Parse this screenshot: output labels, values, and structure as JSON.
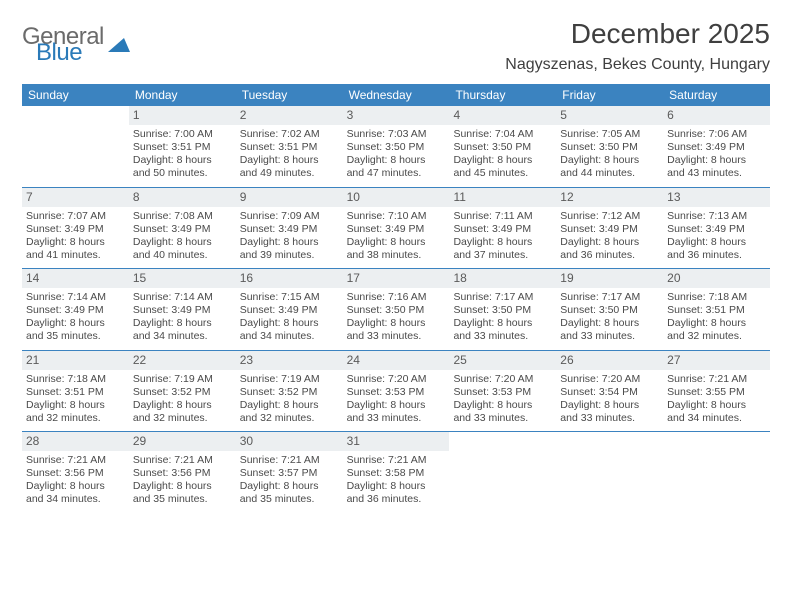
{
  "brand": {
    "part1": "General",
    "part2": "Blue"
  },
  "title": "December 2025",
  "location": "Nagyszenas, Bekes County, Hungary",
  "colors": {
    "header_bg": "#3b83c0",
    "header_text": "#ffffff",
    "daynum_bg": "#eceff1",
    "text": "#4a4a4a",
    "rule": "#3b83c0",
    "brand_blue": "#2a7ab8",
    "brand_gray": "#6b6b6b"
  },
  "typography": {
    "title_fontsize": 28,
    "location_fontsize": 16,
    "dow_fontsize": 12,
    "cell_fontsize": 10.5,
    "daynum_fontsize": 12
  },
  "days_of_week": [
    "Sunday",
    "Monday",
    "Tuesday",
    "Wednesday",
    "Thursday",
    "Friday",
    "Saturday"
  ],
  "weeks": [
    [
      {
        "n": "",
        "lines": []
      },
      {
        "n": "1",
        "lines": [
          "Sunrise: 7:00 AM",
          "Sunset: 3:51 PM",
          "Daylight: 8 hours and 50 minutes."
        ]
      },
      {
        "n": "2",
        "lines": [
          "Sunrise: 7:02 AM",
          "Sunset: 3:51 PM",
          "Daylight: 8 hours and 49 minutes."
        ]
      },
      {
        "n": "3",
        "lines": [
          "Sunrise: 7:03 AM",
          "Sunset: 3:50 PM",
          "Daylight: 8 hours and 47 minutes."
        ]
      },
      {
        "n": "4",
        "lines": [
          "Sunrise: 7:04 AM",
          "Sunset: 3:50 PM",
          "Daylight: 8 hours and 45 minutes."
        ]
      },
      {
        "n": "5",
        "lines": [
          "Sunrise: 7:05 AM",
          "Sunset: 3:50 PM",
          "Daylight: 8 hours and 44 minutes."
        ]
      },
      {
        "n": "6",
        "lines": [
          "Sunrise: 7:06 AM",
          "Sunset: 3:49 PM",
          "Daylight: 8 hours and 43 minutes."
        ]
      }
    ],
    [
      {
        "n": "7",
        "lines": [
          "Sunrise: 7:07 AM",
          "Sunset: 3:49 PM",
          "Daylight: 8 hours and 41 minutes."
        ]
      },
      {
        "n": "8",
        "lines": [
          "Sunrise: 7:08 AM",
          "Sunset: 3:49 PM",
          "Daylight: 8 hours and 40 minutes."
        ]
      },
      {
        "n": "9",
        "lines": [
          "Sunrise: 7:09 AM",
          "Sunset: 3:49 PM",
          "Daylight: 8 hours and 39 minutes."
        ]
      },
      {
        "n": "10",
        "lines": [
          "Sunrise: 7:10 AM",
          "Sunset: 3:49 PM",
          "Daylight: 8 hours and 38 minutes."
        ]
      },
      {
        "n": "11",
        "lines": [
          "Sunrise: 7:11 AM",
          "Sunset: 3:49 PM",
          "Daylight: 8 hours and 37 minutes."
        ]
      },
      {
        "n": "12",
        "lines": [
          "Sunrise: 7:12 AM",
          "Sunset: 3:49 PM",
          "Daylight: 8 hours and 36 minutes."
        ]
      },
      {
        "n": "13",
        "lines": [
          "Sunrise: 7:13 AM",
          "Sunset: 3:49 PM",
          "Daylight: 8 hours and 36 minutes."
        ]
      }
    ],
    [
      {
        "n": "14",
        "lines": [
          "Sunrise: 7:14 AM",
          "Sunset: 3:49 PM",
          "Daylight: 8 hours and 35 minutes."
        ]
      },
      {
        "n": "15",
        "lines": [
          "Sunrise: 7:14 AM",
          "Sunset: 3:49 PM",
          "Daylight: 8 hours and 34 minutes."
        ]
      },
      {
        "n": "16",
        "lines": [
          "Sunrise: 7:15 AM",
          "Sunset: 3:49 PM",
          "Daylight: 8 hours and 34 minutes."
        ]
      },
      {
        "n": "17",
        "lines": [
          "Sunrise: 7:16 AM",
          "Sunset: 3:50 PM",
          "Daylight: 8 hours and 33 minutes."
        ]
      },
      {
        "n": "18",
        "lines": [
          "Sunrise: 7:17 AM",
          "Sunset: 3:50 PM",
          "Daylight: 8 hours and 33 minutes."
        ]
      },
      {
        "n": "19",
        "lines": [
          "Sunrise: 7:17 AM",
          "Sunset: 3:50 PM",
          "Daylight: 8 hours and 33 minutes."
        ]
      },
      {
        "n": "20",
        "lines": [
          "Sunrise: 7:18 AM",
          "Sunset: 3:51 PM",
          "Daylight: 8 hours and 32 minutes."
        ]
      }
    ],
    [
      {
        "n": "21",
        "lines": [
          "Sunrise: 7:18 AM",
          "Sunset: 3:51 PM",
          "Daylight: 8 hours and 32 minutes."
        ]
      },
      {
        "n": "22",
        "lines": [
          "Sunrise: 7:19 AM",
          "Sunset: 3:52 PM",
          "Daylight: 8 hours and 32 minutes."
        ]
      },
      {
        "n": "23",
        "lines": [
          "Sunrise: 7:19 AM",
          "Sunset: 3:52 PM",
          "Daylight: 8 hours and 32 minutes."
        ]
      },
      {
        "n": "24",
        "lines": [
          "Sunrise: 7:20 AM",
          "Sunset: 3:53 PM",
          "Daylight: 8 hours and 33 minutes."
        ]
      },
      {
        "n": "25",
        "lines": [
          "Sunrise: 7:20 AM",
          "Sunset: 3:53 PM",
          "Daylight: 8 hours and 33 minutes."
        ]
      },
      {
        "n": "26",
        "lines": [
          "Sunrise: 7:20 AM",
          "Sunset: 3:54 PM",
          "Daylight: 8 hours and 33 minutes."
        ]
      },
      {
        "n": "27",
        "lines": [
          "Sunrise: 7:21 AM",
          "Sunset: 3:55 PM",
          "Daylight: 8 hours and 34 minutes."
        ]
      }
    ],
    [
      {
        "n": "28",
        "lines": [
          "Sunrise: 7:21 AM",
          "Sunset: 3:56 PM",
          "Daylight: 8 hours and 34 minutes."
        ]
      },
      {
        "n": "29",
        "lines": [
          "Sunrise: 7:21 AM",
          "Sunset: 3:56 PM",
          "Daylight: 8 hours and 35 minutes."
        ]
      },
      {
        "n": "30",
        "lines": [
          "Sunrise: 7:21 AM",
          "Sunset: 3:57 PM",
          "Daylight: 8 hours and 35 minutes."
        ]
      },
      {
        "n": "31",
        "lines": [
          "Sunrise: 7:21 AM",
          "Sunset: 3:58 PM",
          "Daylight: 8 hours and 36 minutes."
        ]
      },
      {
        "n": "",
        "lines": []
      },
      {
        "n": "",
        "lines": []
      },
      {
        "n": "",
        "lines": []
      }
    ]
  ]
}
